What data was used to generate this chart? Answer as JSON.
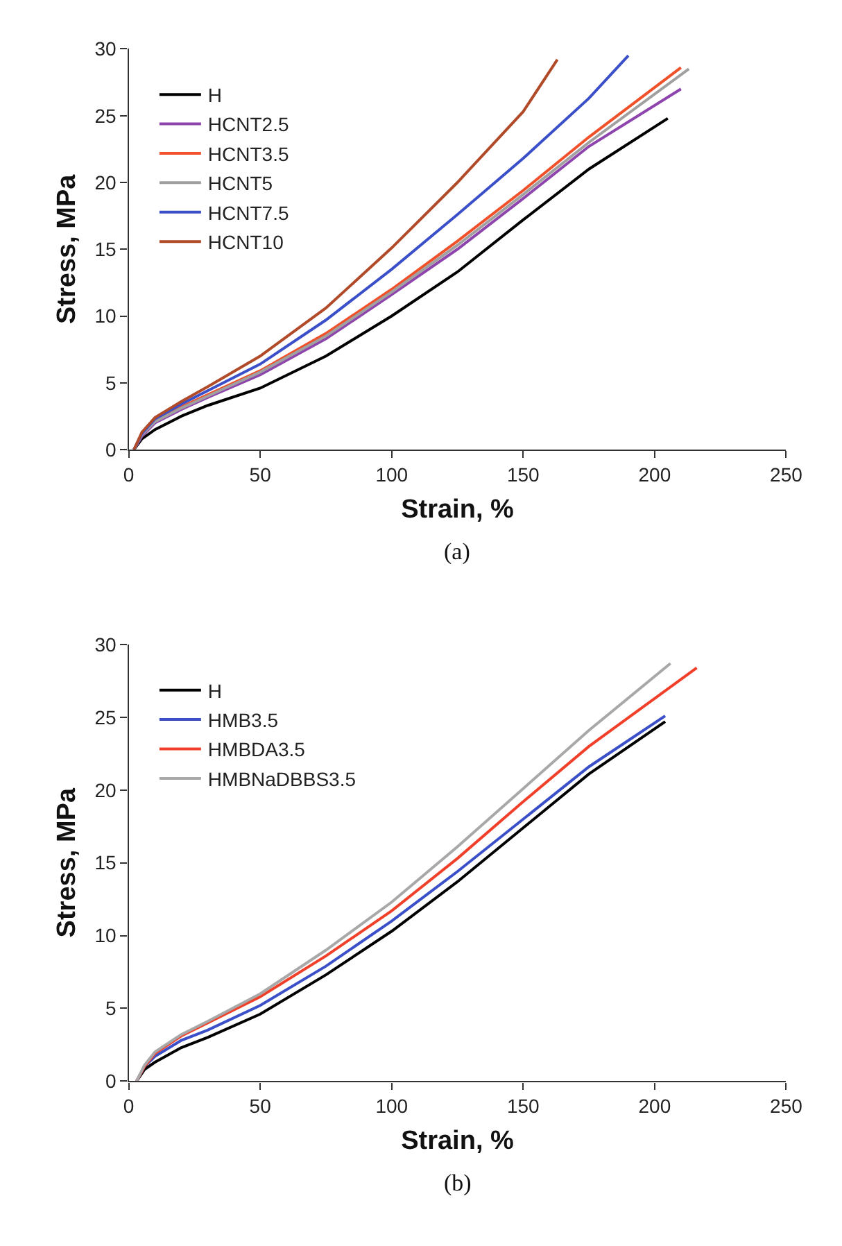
{
  "chart_data": [
    {
      "type": "line",
      "xlabel": "Strain, %",
      "ylabel": "Stress, MPa",
      "xlim": [
        0,
        250
      ],
      "xticks": [
        0,
        50,
        100,
        150,
        200,
        250
      ],
      "ylim": [
        0,
        30
      ],
      "yticks": [
        0,
        5,
        10,
        15,
        20,
        25,
        30
      ],
      "legend": "top left",
      "marker": "none",
      "line_style": "solid",
      "annotations": [
        "(a)"
      ],
      "series": [
        {
          "name": "H",
          "color": "#000000",
          "x": [
            2,
            5,
            10,
            20,
            30,
            50,
            75,
            100,
            125,
            150,
            175,
            205
          ],
          "values": [
            0,
            0.8,
            1.5,
            2.5,
            3.3,
            4.6,
            7,
            10,
            13.3,
            17.2,
            21,
            24.8
          ]
        },
        {
          "name": "HCNT2.5",
          "color": "#8e44ad",
          "x": [
            2,
            5,
            10,
            20,
            30,
            50,
            75,
            100,
            125,
            150,
            175,
            210
          ],
          "values": [
            0,
            1,
            2,
            3,
            3.9,
            5.6,
            8.3,
            11.6,
            15,
            18.8,
            22.7,
            27
          ]
        },
        {
          "name": "HCNT3.5",
          "color": "#f0502a",
          "x": [
            10,
            20,
            30,
            50,
            75,
            100,
            125,
            150,
            175,
            210
          ],
          "values": [
            2.1,
            3.2,
            4.1,
            5.9,
            8.7,
            12,
            15.6,
            19.4,
            23.4,
            28.6
          ]
        },
        {
          "name": "HCNT5",
          "color": "#a0a0a0",
          "x": [
            2,
            5,
            10,
            20,
            30,
            50,
            75,
            100,
            125,
            150,
            175,
            213
          ],
          "values": [
            0,
            1.1,
            2.1,
            3.1,
            4,
            5.8,
            8.5,
            11.8,
            15.3,
            19.1,
            23,
            28.5
          ]
        },
        {
          "name": "HCNT7.5",
          "color": "#3a4fc8",
          "x": [
            2,
            5,
            10,
            20,
            30,
            50,
            75,
            100,
            125,
            150,
            175,
            190
          ],
          "values": [
            0,
            1.2,
            2.3,
            3.4,
            4.4,
            6.4,
            9.7,
            13.5,
            17.6,
            21.8,
            26.3,
            29.5
          ]
        },
        {
          "name": "HCNT10",
          "color": "#b04a28",
          "x": [
            2,
            5,
            10,
            20,
            30,
            50,
            75,
            100,
            125,
            150,
            163
          ],
          "values": [
            0,
            1.3,
            2.4,
            3.6,
            4.7,
            7,
            10.6,
            15.1,
            20,
            25.3,
            29.2
          ]
        }
      ]
    },
    {
      "type": "line",
      "xlabel": "Strain, %",
      "ylabel": "Stress, MPa",
      "xlim": [
        0,
        250
      ],
      "xticks": [
        0,
        50,
        100,
        150,
        200,
        250
      ],
      "ylim": [
        0,
        30
      ],
      "yticks": [
        0,
        5,
        10,
        15,
        20,
        25,
        30
      ],
      "legend": "top left",
      "marker": "none",
      "line_style": "solid",
      "annotations": [
        "(b)"
      ],
      "series": [
        {
          "name": "H",
          "color": "#000000",
          "x": [
            3,
            6,
            10,
            20,
            30,
            50,
            75,
            100,
            125,
            150,
            175,
            204
          ],
          "values": [
            0,
            0.8,
            1.3,
            2.3,
            3,
            4.6,
            7.3,
            10.3,
            13.7,
            17.4,
            21.1,
            24.7
          ]
        },
        {
          "name": "HMB3.5",
          "color": "#3a4fc8",
          "x": [
            3,
            6,
            10,
            20,
            30,
            50,
            75,
            100,
            125,
            150,
            175,
            204
          ],
          "values": [
            0,
            1,
            1.7,
            2.8,
            3.5,
            5.2,
            7.9,
            11,
            14.4,
            18,
            21.6,
            25.1
          ]
        },
        {
          "name": "HMBDA3.5",
          "color": "#f0402a",
          "x": [
            3,
            6,
            10,
            20,
            30,
            50,
            75,
            100,
            125,
            150,
            175,
            216
          ],
          "values": [
            0,
            1,
            1.9,
            3.1,
            4,
            5.8,
            8.6,
            11.7,
            15.3,
            19.2,
            23,
            28.4
          ]
        },
        {
          "name": "HMBNaDBBS3.5",
          "color": "#a8a8a8",
          "x": [
            3,
            6,
            10,
            20,
            30,
            50,
            75,
            100,
            125,
            150,
            175,
            206
          ],
          "values": [
            0,
            1.1,
            2,
            3.2,
            4.1,
            6,
            9,
            12.3,
            16.1,
            20.1,
            24.1,
            28.7
          ]
        }
      ]
    }
  ]
}
